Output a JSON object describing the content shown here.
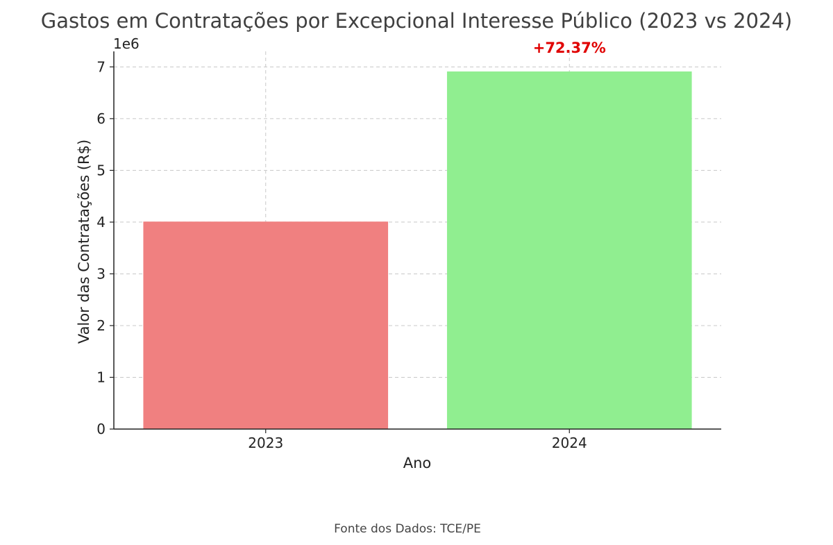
{
  "chart_data": {
    "type": "bar",
    "title": "Gastos em Contratações por Excepcional Interesse Público (2023 vs 2024)",
    "xlabel": "Ano",
    "ylabel": "Valor das Contratações (R$)",
    "y_offset_label": "1e6",
    "categories": [
      "2023",
      "2024"
    ],
    "values": [
      4010000,
      6912000
    ],
    "colors": [
      "#f08080",
      "#90ee90"
    ],
    "ylim": [
      0,
      7300000
    ],
    "yticks": [
      0,
      1,
      2,
      3,
      4,
      5,
      6,
      7
    ],
    "y_tick_scale": 1000000,
    "grid": true,
    "annotation": {
      "text": "+72.37%",
      "category": "2024",
      "color": "#e00000"
    }
  },
  "source": "Fonte dos Dados: TCE/PE"
}
